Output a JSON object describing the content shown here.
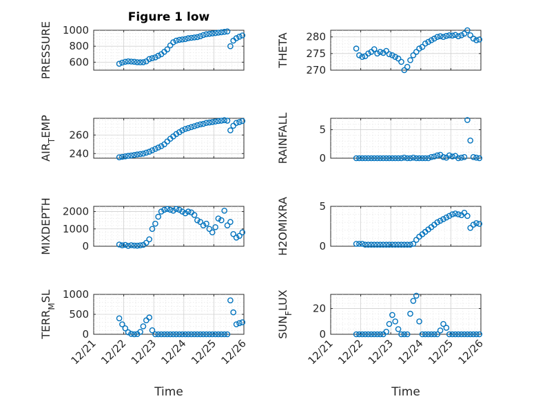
{
  "colors": {
    "marker": "#0072bd",
    "axis": "#262626"
  },
  "figure": {
    "title": "Figure 1 low"
  },
  "chart_data": [
    {
      "type": "scatter",
      "ylabel": "PRESSURE",
      "ylim": [
        500,
        1000
      ],
      "yticks": [
        600,
        800,
        1000
      ],
      "xlim": [
        0,
        5
      ],
      "xtick_labels": [],
      "x": [
        0.85,
        0.95,
        1.05,
        1.15,
        1.25,
        1.35,
        1.45,
        1.55,
        1.65,
        1.75,
        1.85,
        1.95,
        2.05,
        2.15,
        2.25,
        2.35,
        2.45,
        2.55,
        2.65,
        2.75,
        2.85,
        2.95,
        3.05,
        3.15,
        3.25,
        3.35,
        3.45,
        3.55,
        3.65,
        3.75,
        3.85,
        3.95,
        4.05,
        4.15,
        4.25,
        4.35,
        4.45,
        4.55,
        4.65,
        4.75,
        4.85,
        4.95
      ],
      "y": [
        580,
        595,
        605,
        610,
        608,
        605,
        600,
        598,
        600,
        610,
        640,
        650,
        660,
        680,
        700,
        730,
        760,
        810,
        850,
        870,
        880,
        885,
        890,
        900,
        905,
        910,
        915,
        925,
        940,
        950,
        955,
        960,
        965,
        970,
        975,
        980,
        985,
        800,
        870,
        900,
        920,
        935
      ]
    },
    {
      "type": "scatter",
      "ylabel": "THETA",
      "ylim": [
        270,
        282
      ],
      "yticks": [
        270,
        275,
        280
      ],
      "xlim": [
        0,
        5
      ],
      "xtick_labels": [],
      "x": [
        0.85,
        0.95,
        1.05,
        1.15,
        1.25,
        1.35,
        1.45,
        1.55,
        1.65,
        1.75,
        1.85,
        1.95,
        2.05,
        2.15,
        2.25,
        2.35,
        2.45,
        2.55,
        2.65,
        2.75,
        2.85,
        2.95,
        3.05,
        3.15,
        3.25,
        3.35,
        3.45,
        3.55,
        3.65,
        3.75,
        3.85,
        3.95,
        4.05,
        4.15,
        4.25,
        4.35,
        4.45,
        4.55,
        4.65,
        4.75,
        4.85,
        4.95
      ],
      "y": [
        276.5,
        274.5,
        274.0,
        274.2,
        275.0,
        275.5,
        276.3,
        275.0,
        275.5,
        275.2,
        275.8,
        274.8,
        274.5,
        274.0,
        273.5,
        272.5,
        270.0,
        271.0,
        273.0,
        274.5,
        275.5,
        276.5,
        277.0,
        278.0,
        278.5,
        279.0,
        279.5,
        280.0,
        280.2,
        280.0,
        280.3,
        280.5,
        280.4,
        280.6,
        280.2,
        280.5,
        281.0,
        282.0,
        280.5,
        279.5,
        279.0,
        279.2
      ]
    },
    {
      "type": "scatter",
      "ylabel": "AIR_TEMP",
      "ylim": [
        235,
        278
      ],
      "yticks": [
        240,
        260
      ],
      "xlim": [
        0,
        5
      ],
      "xtick_labels": [],
      "x": [
        0.85,
        0.95,
        1.05,
        1.15,
        1.25,
        1.35,
        1.45,
        1.55,
        1.65,
        1.75,
        1.85,
        1.95,
        2.05,
        2.15,
        2.25,
        2.35,
        2.45,
        2.55,
        2.65,
        2.75,
        2.85,
        2.95,
        3.05,
        3.15,
        3.25,
        3.35,
        3.45,
        3.55,
        3.65,
        3.75,
        3.85,
        3.95,
        4.05,
        4.15,
        4.25,
        4.35,
        4.45,
        4.55,
        4.65,
        4.75,
        4.85,
        4.95
      ],
      "y": [
        236,
        236.5,
        237,
        237.5,
        238,
        238.5,
        239,
        239.5,
        240,
        241,
        242,
        243.5,
        245,
        246.5,
        248,
        250,
        253,
        256,
        258.5,
        261,
        263,
        265,
        266.5,
        267.5,
        268.5,
        269.5,
        270.5,
        271.5,
        272,
        273,
        273.5,
        274,
        274.5,
        275,
        275.5,
        276,
        275.5,
        265,
        270,
        273,
        274,
        275
      ]
    },
    {
      "type": "scatter",
      "ylabel": "RAINFALL",
      "ylim": [
        0,
        7
      ],
      "yticks": [
        0,
        5
      ],
      "xlim": [
        0,
        5
      ],
      "xtick_labels": [],
      "x": [
        0.85,
        0.95,
        1.05,
        1.15,
        1.25,
        1.35,
        1.45,
        1.55,
        1.65,
        1.75,
        1.85,
        1.95,
        2.05,
        2.15,
        2.25,
        2.35,
        2.45,
        2.55,
        2.65,
        2.75,
        2.85,
        2.95,
        3.05,
        3.15,
        3.25,
        3.35,
        3.45,
        3.55,
        3.65,
        3.75,
        3.85,
        3.95,
        4.05,
        4.15,
        4.25,
        4.35,
        4.45,
        4.55,
        4.65,
        4.75,
        4.85,
        4.95
      ],
      "y": [
        0,
        0,
        0,
        0,
        0,
        0,
        0,
        0,
        0,
        0,
        0,
        0,
        0,
        0,
        0,
        0,
        0.1,
        0,
        0,
        0.1,
        0,
        0,
        0,
        0,
        0,
        0.2,
        0.3,
        0.5,
        0.6,
        0.2,
        0.1,
        0.5,
        0.3,
        0.4,
        0,
        0.1,
        0.2,
        6.7,
        3.1,
        0.2,
        0.1,
        0
      ]
    },
    {
      "type": "scatter",
      "ylabel": "MIXDEPTH",
      "ylim": [
        0,
        2300
      ],
      "yticks": [
        0,
        1000,
        2000
      ],
      "xlim": [
        0,
        5
      ],
      "xtick_labels": [],
      "x": [
        0.85,
        0.95,
        1.05,
        1.15,
        1.25,
        1.35,
        1.45,
        1.55,
        1.65,
        1.75,
        1.85,
        1.95,
        2.05,
        2.15,
        2.25,
        2.35,
        2.45,
        2.55,
        2.65,
        2.75,
        2.85,
        2.95,
        3.05,
        3.15,
        3.25,
        3.35,
        3.45,
        3.55,
        3.65,
        3.75,
        3.85,
        3.95,
        4.05,
        4.15,
        4.25,
        4.35,
        4.45,
        4.55,
        4.65,
        4.75,
        4.85,
        4.95
      ],
      "y": [
        100,
        50,
        80,
        20,
        60,
        40,
        30,
        50,
        80,
        200,
        400,
        1000,
        1300,
        1700,
        2000,
        2100,
        2150,
        2100,
        2050,
        2150,
        2100,
        2000,
        1900,
        2000,
        1950,
        1800,
        1500,
        1400,
        1200,
        1300,
        1000,
        800,
        1100,
        1600,
        1500,
        2050,
        1200,
        1400,
        700,
        500,
        600,
        800
      ]
    },
    {
      "type": "scatter",
      "ylabel": "H2OMIXRA",
      "ylim": [
        0,
        5
      ],
      "yticks": [
        0,
        5
      ],
      "xlim": [
        0,
        5
      ],
      "xtick_labels": [],
      "x": [
        0.85,
        0.95,
        1.05,
        1.15,
        1.25,
        1.35,
        1.45,
        1.55,
        1.65,
        1.75,
        1.85,
        1.95,
        2.05,
        2.15,
        2.25,
        2.35,
        2.45,
        2.55,
        2.65,
        2.75,
        2.85,
        2.95,
        3.05,
        3.15,
        3.25,
        3.35,
        3.45,
        3.55,
        3.65,
        3.75,
        3.85,
        3.95,
        4.05,
        4.15,
        4.25,
        4.35,
        4.45,
        4.55,
        4.65,
        4.75,
        4.85,
        4.95
      ],
      "y": [
        0.3,
        0.3,
        0.3,
        0.2,
        0.2,
        0.2,
        0.2,
        0.2,
        0.2,
        0.2,
        0.2,
        0.2,
        0.2,
        0.2,
        0.2,
        0.2,
        0.2,
        0.2,
        0.2,
        0.3,
        0.8,
        1.2,
        1.5,
        1.8,
        2.1,
        2.4,
        2.7,
        3.0,
        3.2,
        3.4,
        3.6,
        3.8,
        4.0,
        4.1,
        4.0,
        3.9,
        4.2,
        3.8,
        2.3,
        2.7,
        2.9,
        2.8
      ]
    },
    {
      "type": "scatter",
      "ylabel": "TERR_MSL",
      "ylim": [
        0,
        1000
      ],
      "yticks": [
        0,
        500,
        1000
      ],
      "xlim": [
        0,
        5
      ],
      "xtick_labels": [
        "12/21",
        "12/22",
        "12/23",
        "12/24",
        "12/25",
        "12/26"
      ],
      "xlabel": "Time",
      "x": [
        0.85,
        0.95,
        1.05,
        1.15,
        1.25,
        1.35,
        1.45,
        1.55,
        1.65,
        1.75,
        1.85,
        1.95,
        2.05,
        2.15,
        2.25,
        2.35,
        2.45,
        2.55,
        2.65,
        2.75,
        2.85,
        2.95,
        3.05,
        3.15,
        3.25,
        3.35,
        3.45,
        3.55,
        3.65,
        3.75,
        3.85,
        3.95,
        4.05,
        4.15,
        4.25,
        4.35,
        4.45,
        4.55,
        4.65,
        4.75,
        4.85,
        4.95
      ],
      "y": [
        400,
        250,
        150,
        50,
        10,
        0,
        5,
        60,
        200,
        350,
        420,
        100,
        0,
        0,
        0,
        0,
        0,
        0,
        0,
        0,
        0,
        0,
        0,
        0,
        0,
        0,
        0,
        0,
        0,
        0,
        0,
        0,
        0,
        0,
        0,
        0,
        0,
        850,
        550,
        250,
        280,
        300
      ]
    },
    {
      "type": "scatter",
      "ylabel": "SUN_FLUX",
      "ylim": [
        0,
        31
      ],
      "yticks": [
        0,
        20
      ],
      "xlim": [
        0,
        5
      ],
      "xtick_labels": [
        "12/21",
        "12/22",
        "12/23",
        "12/24",
        "12/25",
        "12/26"
      ],
      "xlabel": "Time",
      "x": [
        0.85,
        0.95,
        1.05,
        1.15,
        1.25,
        1.35,
        1.45,
        1.55,
        1.65,
        1.75,
        1.85,
        1.95,
        2.05,
        2.15,
        2.25,
        2.35,
        2.45,
        2.55,
        2.65,
        2.75,
        2.85,
        2.95,
        3.05,
        3.15,
        3.25,
        3.35,
        3.45,
        3.55,
        3.65,
        3.75,
        3.85,
        3.95,
        4.05,
        4.15,
        4.25,
        4.35,
        4.45,
        4.55,
        4.65,
        4.75,
        4.85,
        4.95
      ],
      "y": [
        0,
        0,
        0,
        0,
        0,
        0,
        0,
        0,
        0,
        0,
        2,
        8,
        15,
        10,
        4,
        0,
        0,
        0,
        16,
        26,
        30,
        10,
        0,
        0,
        0,
        0,
        0,
        0,
        3,
        8,
        5,
        0,
        0,
        0,
        0,
        0,
        0,
        0,
        0,
        0,
        0,
        0
      ]
    }
  ]
}
